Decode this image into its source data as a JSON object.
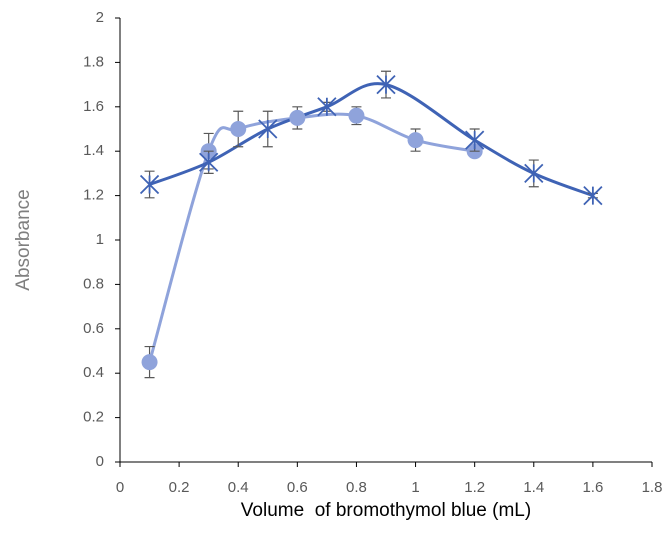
{
  "chart_data": {
    "type": "scatter",
    "x_label": "Volume  of bromothymol blue (mL)",
    "y_label": "Absorbance",
    "xlim": [
      0,
      1.8
    ],
    "xticks": [
      0,
      0.2,
      0.4,
      0.6,
      0.8,
      1,
      1.2,
      1.4,
      1.6,
      1.8
    ],
    "ylim": [
      0,
      2
    ],
    "yticks": [
      0,
      0.2,
      0.4,
      0.6,
      0.8,
      1,
      1.2,
      1.4,
      1.6,
      1.8,
      2
    ],
    "series": [
      {
        "color": "#8fa3db",
        "marker": "circle",
        "x": [
          0.1,
          0.3,
          0.4,
          0.6,
          0.8,
          1,
          1.2
        ],
        "values": [
          0.45,
          1.4,
          1.5,
          1.55,
          1.56,
          1.45,
          1.4
        ],
        "errors": [
          0.07,
          0.08,
          0.08,
          0.05,
          0.04,
          0.05,
          0.01
        ]
      },
      {
        "color": "#3f63b5",
        "marker": "star",
        "x": [
          0.1,
          0.3,
          0.5,
          0.7,
          0.9,
          1.2,
          1.4,
          1.6
        ],
        "values": [
          1.25,
          1.35,
          1.5,
          1.6,
          1.7,
          1.45,
          1.3,
          1.2
        ],
        "errors": [
          0.06,
          0.05,
          0.08,
          0.02,
          0.06,
          0.05,
          0.06,
          0.01
        ]
      }
    ]
  }
}
